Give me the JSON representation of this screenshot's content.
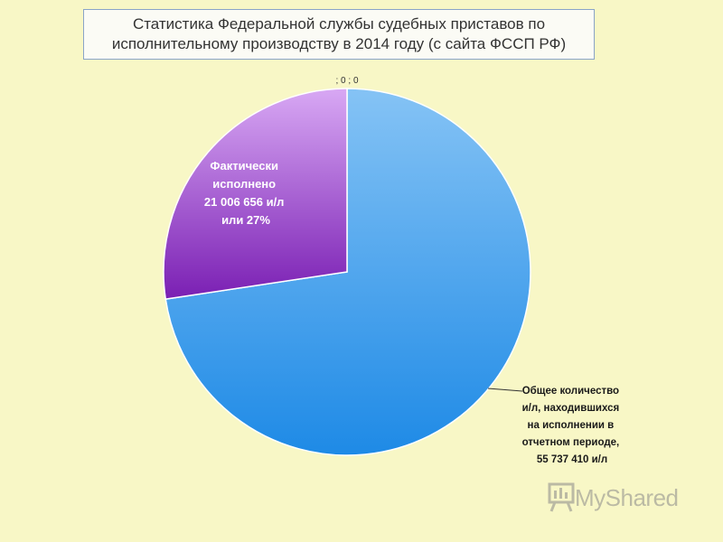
{
  "chart_data": {
    "type": "pie",
    "title_lines": [
      "Статистика Федеральной службы судебных приставов по",
      "исполнительному производству в 2014 году (с сайта ФССП РФ)"
    ],
    "slices": [
      {
        "key": "total",
        "value": 55737410,
        "percent": 73,
        "label_lines": [
          "Общее количество",
          "и/л, находившихся",
          "на исполнении в",
          "отчетном периоде,",
          "55 737 410 и/л"
        ],
        "color_light": "#85c3f5",
        "color_dark": "#1e8ae6"
      },
      {
        "key": "executed",
        "value": 21006656,
        "percent": 27,
        "label_lines": [
          "Фактически",
          "исполнено",
          "21 006 656 и/л",
          "или 27%"
        ],
        "color_light": "#d8a8f4",
        "color_dark": "#7a1fb3"
      }
    ],
    "zero_label": "; 0 ; 0"
  },
  "watermark": {
    "text": "MyShared",
    "icon": "presentation-board-icon"
  }
}
